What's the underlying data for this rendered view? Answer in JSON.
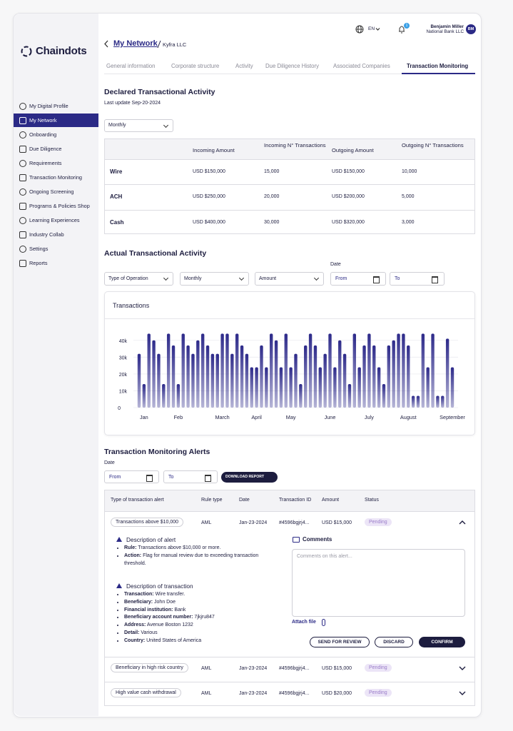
{
  "sidebar": {
    "logo": "Chaindots",
    "menu": [
      "My Digital Profile",
      "My Network",
      "Onboarding",
      "Due Diligence",
      "Requirements",
      "Transaction Monitoring",
      "Ongoing Screening",
      "Programs & Policies Shop",
      "Learning Experiences",
      "Industry Collab",
      "Settings",
      "Reports"
    ],
    "active": 1
  },
  "header": {
    "language": "EN",
    "notifications": "1",
    "user_name": "Benjamin Miller",
    "user_org": "National Bank LLC",
    "initials": "BM"
  },
  "breadcrumb": {
    "parent": "My Network",
    "current": "Kyfra LLC"
  },
  "tabs": {
    "items": [
      "General information",
      "Corporate structure",
      "Activity",
      "Due Diligence History",
      "Associated Companies",
      "Transaction Monitoring"
    ],
    "active": 5
  },
  "declared": {
    "title": "Declared Transactional Activity",
    "last_update": "Last update Sep-20-2024",
    "period": "Monthly",
    "columns": [
      "Incoming Amount",
      "Incoming N° Transactions",
      "Outgoing Amount",
      "Outgoing N° Transactions"
    ],
    "rows": [
      {
        "label": "Wire",
        "cells": [
          "USD $150,000",
          "15,000",
          "USD $150,000",
          "10,000"
        ]
      },
      {
        "label": "ACH",
        "cells": [
          "USD $250,000",
          "20,000",
          "USD $200,000",
          "5,000"
        ]
      },
      {
        "label": "Cash",
        "cells": [
          "USD $400,000",
          "30,000",
          "USD $320,000",
          "3,000"
        ]
      }
    ]
  },
  "actual": {
    "title": "Actual Transactional Activity",
    "filters": [
      "Type of Operation",
      "Monthly",
      "Amount"
    ],
    "date_label": "Date",
    "from": "From",
    "to": "To"
  },
  "chart_data": {
    "type": "bar",
    "title": "Transactions",
    "color": "#2d2a8a",
    "ylim": [
      0,
      45000
    ],
    "yticks": [
      0,
      {
        "value": 10000,
        "label": "10k"
      },
      {
        "value": 20000,
        "label": "20k"
      },
      {
        "value": 30000,
        "label": "30k"
      },
      {
        "value": 40000,
        "label": "40k"
      }
    ],
    "grid": true,
    "categories": [
      null,
      "Jan",
      null,
      null,
      null,
      null,
      null,
      null,
      "Feb",
      null,
      null,
      null,
      null,
      null,
      null,
      null,
      null,
      "March",
      null,
      null,
      null,
      null,
      null,
      null,
      "April",
      null,
      null,
      null,
      null,
      null,
      null,
      "May",
      null,
      null,
      null,
      null,
      null,
      null,
      null,
      "June",
      null,
      null,
      null,
      null,
      null,
      null,
      null,
      "July",
      null,
      null,
      null,
      null,
      null,
      null,
      null,
      "August",
      null,
      null,
      null,
      null,
      null,
      null,
      null,
      null,
      "September"
    ],
    "values": [
      32000,
      14000,
      44000,
      40000,
      32000,
      14000,
      44000,
      37000,
      14000,
      44000,
      37000,
      32000,
      40000,
      44000,
      37000,
      32000,
      32000,
      44000,
      44000,
      32000,
      44000,
      37000,
      32000,
      24000,
      24000,
      37000,
      24000,
      44000,
      40000,
      24000,
      44000,
      24000,
      32000,
      14000,
      37000,
      44000,
      37000,
      24000,
      32000,
      44000,
      24000,
      40000,
      32000,
      14000,
      44000,
      24000,
      37000,
      44000,
      37000,
      24000,
      14000,
      37000,
      40000,
      44000,
      44000,
      37000,
      7000,
      7000,
      44000,
      24000,
      44000,
      7000,
      7000,
      41000,
      24000
    ]
  },
  "alerts": {
    "title": "Transaction Monitoring Alerts",
    "date_label": "Date",
    "from": "From",
    "to": "To",
    "download": "DOWNLOAD REPORT",
    "columns": [
      "Type of transaction alert",
      "Rule type",
      "Date",
      "Transaction ID",
      "Amount",
      "Status"
    ],
    "rows": [
      [
        "Transactions above $10,000",
        "AML",
        "Jan-23-2024",
        "#4596bgjrj4...",
        "USD $15,000",
        "Pending"
      ],
      [
        "Beneficiary in high risk country",
        "AML",
        "Jan-23-2024",
        "#4596bgjrj4...",
        "USD $15,000",
        "Pending"
      ],
      [
        "High value cash withdrawal",
        "AML",
        "Jan-23-2024",
        "#4596bgjrj4...",
        "USD $20,000",
        "Pending"
      ]
    ],
    "detail": {
      "alert_title": "Description of alert",
      "alert_items": [
        {
          "label": "Rule:",
          "text": "Transactions above $10,000 or more."
        },
        {
          "label": "Action:",
          "text": "Flag for manual review due to exceeding transaction threshold."
        }
      ],
      "tx_title": "Description of transaction",
      "tx_items": [
        {
          "label": "Transaction:",
          "text": "Wire transfer."
        },
        {
          "label": "Beneficiary:",
          "text": "John Doe"
        },
        {
          "label": "Financial institution:",
          "text": "Bank"
        },
        {
          "label": "Beneficiary account number:",
          "text": "7jkjru847"
        },
        {
          "label": "Address:",
          "text": "Avenue Boston 1232"
        },
        {
          "label": "Detail:",
          "text": "Various"
        },
        {
          "label": "Country:",
          "text": "United States of America"
        }
      ],
      "comments_title": "Comments",
      "comments_placeholder": "Comments on this alert...",
      "attach": "Attach file",
      "buttons": [
        "SEND FOR REVIEW",
        "DISCARD",
        "CONFIRM"
      ]
    }
  }
}
